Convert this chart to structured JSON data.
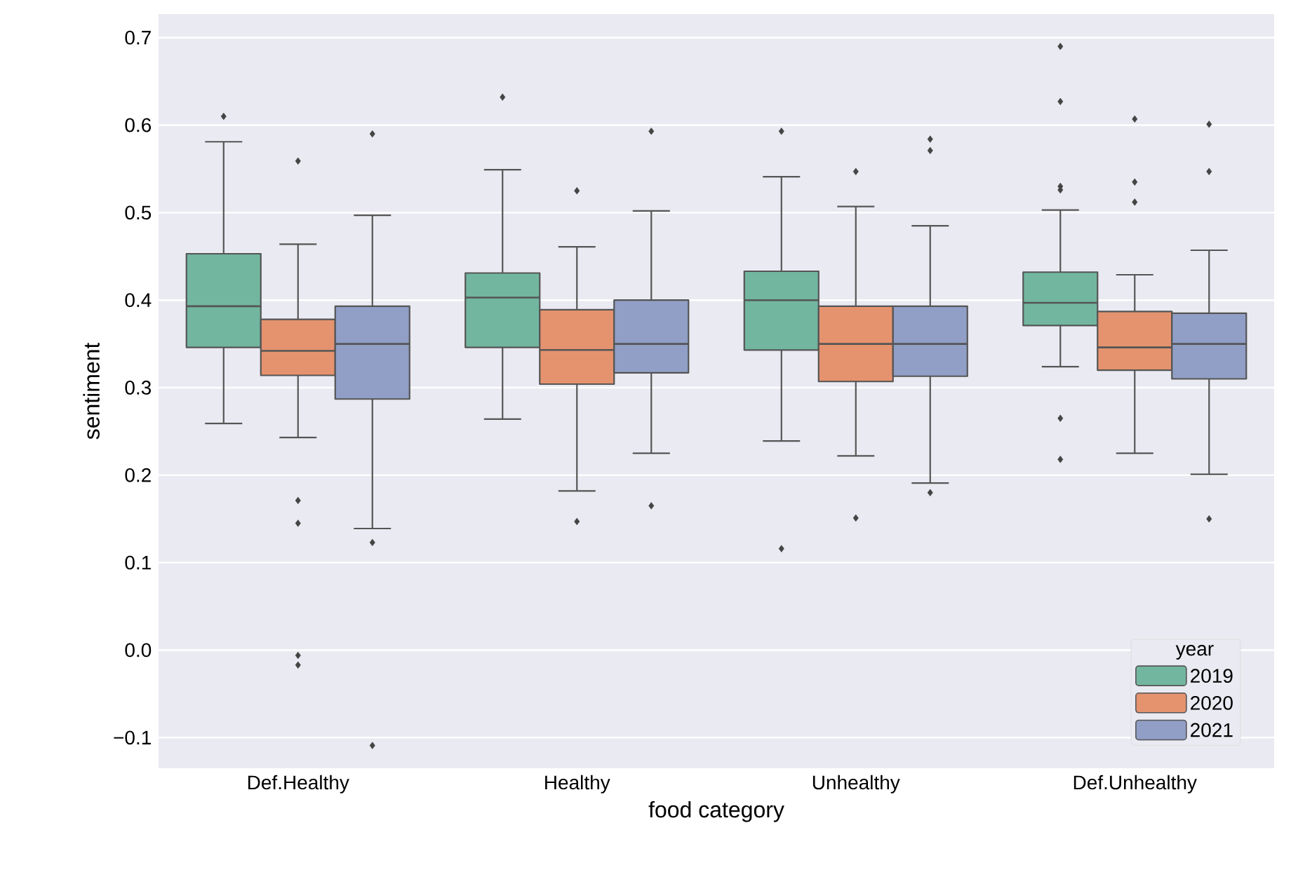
{
  "chart_data": {
    "type": "box",
    "xlabel": "food category",
    "ylabel": "sentiment",
    "categories": [
      "Def.Healthy",
      "Healthy",
      "Unhealthy",
      "Def.Unhealthy"
    ],
    "series": [
      {
        "name": "2019",
        "color": "#72b6a0",
        "boxes": [
          {
            "low": 0.259,
            "q1": 0.346,
            "median": 0.393,
            "q3": 0.453,
            "high": 0.581,
            "outliers": [
              0.61
            ]
          },
          {
            "low": 0.264,
            "q1": 0.346,
            "median": 0.403,
            "q3": 0.431,
            "high": 0.549,
            "outliers": [
              0.632
            ]
          },
          {
            "low": 0.239,
            "q1": 0.343,
            "median": 0.4,
            "q3": 0.433,
            "high": 0.541,
            "outliers": [
              0.593,
              0.116
            ]
          },
          {
            "low": 0.324,
            "q1": 0.371,
            "median": 0.397,
            "q3": 0.432,
            "high": 0.503,
            "outliers": [
              0.69,
              0.627,
              0.53,
              0.526,
              0.265,
              0.218
            ]
          }
        ]
      },
      {
        "name": "2020",
        "color": "#e5936f",
        "boxes": [
          {
            "low": 0.243,
            "q1": 0.314,
            "median": 0.342,
            "q3": 0.378,
            "high": 0.464,
            "outliers": [
              0.559,
              0.171,
              0.145,
              -0.006,
              -0.017
            ]
          },
          {
            "low": 0.182,
            "q1": 0.304,
            "median": 0.343,
            "q3": 0.389,
            "high": 0.461,
            "outliers": [
              0.525,
              0.147
            ]
          },
          {
            "low": 0.222,
            "q1": 0.307,
            "median": 0.35,
            "q3": 0.393,
            "high": 0.507,
            "outliers": [
              0.547,
              0.151
            ]
          },
          {
            "low": 0.225,
            "q1": 0.32,
            "median": 0.346,
            "q3": 0.387,
            "high": 0.429,
            "outliers": [
              0.607,
              0.535,
              0.512
            ]
          }
        ]
      },
      {
        "name": "2021",
        "color": "#919fc6",
        "boxes": [
          {
            "low": 0.139,
            "q1": 0.287,
            "median": 0.35,
            "q3": 0.393,
            "high": 0.497,
            "outliers": [
              0.59,
              0.123,
              -0.109
            ]
          },
          {
            "low": 0.225,
            "q1": 0.317,
            "median": 0.35,
            "q3": 0.4,
            "high": 0.502,
            "outliers": [
              0.593,
              0.165
            ]
          },
          {
            "low": 0.191,
            "q1": 0.313,
            "median": 0.35,
            "q3": 0.393,
            "high": 0.485,
            "outliers": [
              0.584,
              0.571,
              0.18
            ]
          },
          {
            "low": 0.201,
            "q1": 0.31,
            "median": 0.35,
            "q3": 0.385,
            "high": 0.457,
            "outliers": [
              0.601,
              0.547,
              0.15
            ]
          }
        ]
      }
    ],
    "ylim": [
      -0.135,
      0.727
    ],
    "yticks": [
      {
        "value": -0.1,
        "label": "−0.1"
      },
      {
        "value": 0.0,
        "label": "0.0"
      },
      {
        "value": 0.1,
        "label": "0.1"
      },
      {
        "value": 0.2,
        "label": "0.2"
      },
      {
        "value": 0.3,
        "label": "0.3"
      },
      {
        "value": 0.4,
        "label": "0.4"
      },
      {
        "value": 0.5,
        "label": "0.5"
      },
      {
        "value": 0.6,
        "label": "0.6"
      },
      {
        "value": 0.7,
        "label": "0.7"
      }
    ],
    "grid": "y",
    "legend": "bottom right",
    "legend_title": "year",
    "marker": "diamond"
  }
}
